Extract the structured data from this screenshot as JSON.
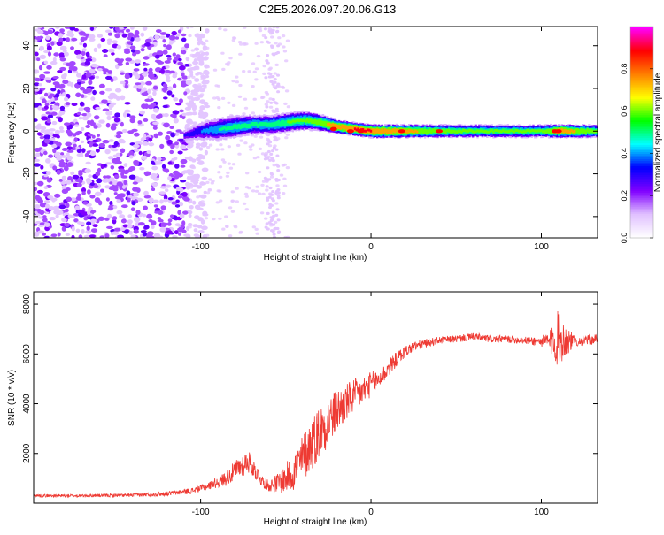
{
  "title": "C2E5.2026.097.20.06.G13",
  "chart_data": [
    {
      "type": "heatmap",
      "name": "spectrogram",
      "xlabel": "Height of straight line (km)",
      "ylabel": "Frequency (Hz)",
      "xlim": [
        -198,
        133
      ],
      "ylim": [
        -50,
        49
      ],
      "xticks": [
        -100,
        0,
        100
      ],
      "yticks": [
        -40,
        -20,
        0,
        20,
        40
      ],
      "colorbar": {
        "label": "Normalized spectral amplitude",
        "range": [
          0,
          1
        ],
        "ticks": [
          "0.0",
          "0.2",
          "0.4",
          "0.6",
          "0.8"
        ],
        "tick_values": [
          0.0,
          0.2,
          0.4,
          0.6,
          0.8
        ],
        "colors": [
          "#ffffff",
          "#e0c0ff",
          "#8000ff",
          "#0000ff",
          "#00ffff",
          "#00ff00",
          "#ffff00",
          "#ff8000",
          "#ff0000",
          "#ff00ff"
        ]
      },
      "noise_region_x": [
        -198,
        -108
      ],
      "ridge": {
        "x": [
          -110,
          -100,
          -90,
          -80,
          -70,
          -60,
          -50,
          -40,
          -30,
          -20,
          -10,
          0,
          20,
          40,
          60,
          80,
          100,
          110,
          133
        ],
        "freq": [
          -2,
          0,
          1,
          2,
          3,
          3,
          4,
          5,
          4,
          2,
          1,
          0,
          0,
          0,
          0,
          0,
          0,
          0,
          0
        ],
        "halfwidth_hz": [
          3,
          5,
          6,
          6,
          5,
          5,
          5,
          5,
          4,
          3,
          3,
          3,
          3,
          3,
          3,
          3,
          3,
          3,
          3
        ],
        "peak_amplitude": [
          0.3,
          0.4,
          0.5,
          0.55,
          0.55,
          0.55,
          0.6,
          0.6,
          0.7,
          0.85,
          0.9,
          0.9,
          0.8,
          0.65,
          0.6,
          0.6,
          0.6,
          0.85,
          0.6
        ]
      }
    },
    {
      "type": "line",
      "name": "snr",
      "xlabel": "Height of straight line (km)",
      "ylabel": "SNR (10 * v/v)",
      "xlim": [
        -198,
        133
      ],
      "ylim": [
        0,
        8500
      ],
      "xticks": [
        -100,
        0,
        100
      ],
      "yticks": [
        2000,
        4000,
        6000,
        8000
      ],
      "color": "#ee3a33",
      "series": [
        {
          "name": "SNR",
          "x": [
            -198,
            -170,
            -140,
            -120,
            -105,
            -95,
            -85,
            -78,
            -72,
            -68,
            -64,
            -60,
            -55,
            -50,
            -45,
            -40,
            -35,
            -30,
            -25,
            -20,
            -15,
            -10,
            -5,
            0,
            5,
            10,
            15,
            20,
            25,
            30,
            40,
            50,
            60,
            70,
            80,
            90,
            100,
            105,
            110,
            115,
            120,
            133
          ],
          "values": [
            300,
            300,
            320,
            380,
            500,
            700,
            1000,
            1400,
            1700,
            1300,
            900,
            700,
            800,
            1000,
            1300,
            1800,
            2400,
            2900,
            3300,
            3700,
            4000,
            4300,
            4500,
            4800,
            5000,
            5400,
            5800,
            6100,
            6300,
            6400,
            6550,
            6600,
            6700,
            6600,
            6600,
            6550,
            6500,
            6500,
            6600,
            6550,
            6500,
            6600
          ],
          "noise_amplitude": [
            60,
            60,
            70,
            90,
            120,
            160,
            300,
            450,
            500,
            350,
            250,
            220,
            400,
            600,
            800,
            1000,
            1100,
            1100,
            1000,
            900,
            800,
            700,
            600,
            500,
            400,
            350,
            300,
            250,
            200,
            180,
            150,
            150,
            150,
            150,
            150,
            150,
            200,
            500,
            1200,
            600,
            200,
            200
          ]
        }
      ]
    }
  ]
}
